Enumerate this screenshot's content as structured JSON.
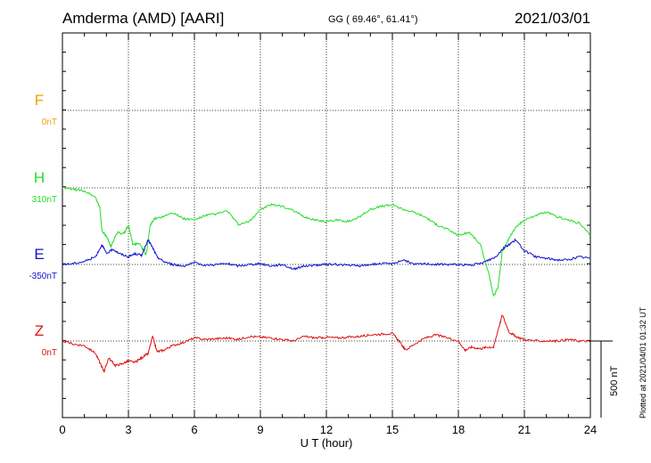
{
  "header": {
    "station": "Amderma (AMD)  [AARI]",
    "coords": "GG ( 69.46°,  61.41°)",
    "date": "2021/03/01"
  },
  "plotted_note": "Plotted at 2021/04/01 01:32 UT",
  "colors": {
    "F": "#f0a000",
    "H": "#22dd22",
    "E": "#1111cc",
    "Z": "#dd1111"
  },
  "chart_data": {
    "type": "line",
    "title": "",
    "xlabel": "U T (hour)",
    "ylabel": "",
    "xlim": [
      0,
      24
    ],
    "xticks": [
      "0",
      "3",
      "6",
      "9",
      "12",
      "15",
      "18",
      "21",
      "24"
    ],
    "scale_bar": "500 nT",
    "grid": true,
    "series": [
      {
        "name": "F",
        "baseline_label": "0nT",
        "color": "#f0a000",
        "x": [],
        "y": []
      },
      {
        "name": "H",
        "baseline_label": "310nT",
        "color": "#22dd22",
        "x": [
          0,
          0.5,
          1,
          1.5,
          1.7,
          1.8,
          2.0,
          2.2,
          2.5,
          2.8,
          3.0,
          3.2,
          3.5,
          3.8,
          4.0,
          4.2,
          4.5,
          5.0,
          5.5,
          6.0,
          6.5,
          7.0,
          7.5,
          8.0,
          8.5,
          9.0,
          9.5,
          10.0,
          10.5,
          11.0,
          11.5,
          12.0,
          12.5,
          13.0,
          13.5,
          14.0,
          14.5,
          15.0,
          15.5,
          16.0,
          16.5,
          17.0,
          17.5,
          18.0,
          18.5,
          19.0,
          19.4,
          19.6,
          19.8,
          20.0,
          20.3,
          20.6,
          21.0,
          21.5,
          22.0,
          22.5,
          23.0,
          23.5,
          24.0
        ],
        "y": [
          310,
          300,
          290,
          250,
          180,
          30,
          -10,
          -70,
          20,
          10,
          70,
          -60,
          -50,
          -130,
          70,
          110,
          120,
          150,
          110,
          100,
          130,
          140,
          160,
          70,
          90,
          170,
          200,
          190,
          160,
          120,
          100,
          90,
          100,
          90,
          120,
          170,
          190,
          200,
          170,
          150,
          120,
          70,
          40,
          0,
          20,
          -60,
          -260,
          -400,
          -340,
          -100,
          -20,
          50,
          100,
          130,
          150,
          120,
          100,
          80,
          0
        ]
      },
      {
        "name": "E",
        "baseline_label": "-350nT",
        "color": "#1111cc",
        "x": [
          0,
          0.5,
          1,
          1.5,
          1.8,
          2.0,
          2.3,
          2.6,
          3.0,
          3.3,
          3.6,
          3.9,
          4.1,
          4.3,
          4.6,
          5.0,
          5.5,
          6.0,
          6.5,
          7.0,
          7.5,
          8.0,
          8.5,
          9.0,
          9.5,
          10.0,
          10.5,
          11.0,
          11.5,
          12.0,
          12.5,
          13.0,
          13.5,
          14.0,
          14.5,
          15.0,
          15.5,
          16.0,
          16.5,
          17.0,
          17.5,
          18.0,
          18.5,
          19.0,
          19.4,
          19.7,
          20.0,
          20.3,
          20.6,
          21.0,
          21.5,
          22.0,
          22.5,
          23.0,
          23.5,
          24.0
        ],
        "y": [
          -350,
          -345,
          -330,
          -300,
          -220,
          -280,
          -250,
          -280,
          -300,
          -280,
          -290,
          -190,
          -240,
          -300,
          -330,
          -350,
          -360,
          -340,
          -355,
          -350,
          -345,
          -360,
          -350,
          -345,
          -360,
          -350,
          -380,
          -360,
          -355,
          -350,
          -350,
          -355,
          -360,
          -350,
          -345,
          -345,
          -320,
          -350,
          -345,
          -350,
          -350,
          -350,
          -355,
          -345,
          -320,
          -300,
          -250,
          -220,
          -190,
          -260,
          -300,
          -310,
          -320,
          -320,
          -300,
          -310
        ]
      },
      {
        "name": "Z",
        "baseline_label": "0nT",
        "color": "#dd1111",
        "x": [
          0,
          0.5,
          1.0,
          1.5,
          1.8,
          1.9,
          2.1,
          2.4,
          2.7,
          3.0,
          3.3,
          3.6,
          3.9,
          4.1,
          4.3,
          4.6,
          5.0,
          5.5,
          6.0,
          6.5,
          7.0,
          7.5,
          8.0,
          8.5,
          9.0,
          9.5,
          10.0,
          10.5,
          11.0,
          11.5,
          12.0,
          12.5,
          13.0,
          13.5,
          14.0,
          14.5,
          15.0,
          15.3,
          15.6,
          16.0,
          16.5,
          17.0,
          17.5,
          18.0,
          18.3,
          18.6,
          19.0,
          19.3,
          19.6,
          19.8,
          20.0,
          20.3,
          20.6,
          21.0,
          21.5,
          22.0,
          22.5,
          23.0,
          23.5,
          24.0
        ],
        "y": [
          0,
          -20,
          -30,
          -80,
          -170,
          -200,
          -110,
          -160,
          -150,
          -130,
          -140,
          -110,
          -80,
          30,
          -70,
          -60,
          -30,
          -10,
          20,
          10,
          15,
          20,
          10,
          30,
          25,
          20,
          10,
          0,
          30,
          20,
          25,
          20,
          25,
          30,
          40,
          45,
          50,
          0,
          -60,
          -20,
          20,
          40,
          20,
          0,
          -60,
          -40,
          -50,
          -40,
          -40,
          70,
          170,
          60,
          30,
          10,
          0,
          0,
          0,
          10,
          0,
          0
        ]
      }
    ]
  }
}
